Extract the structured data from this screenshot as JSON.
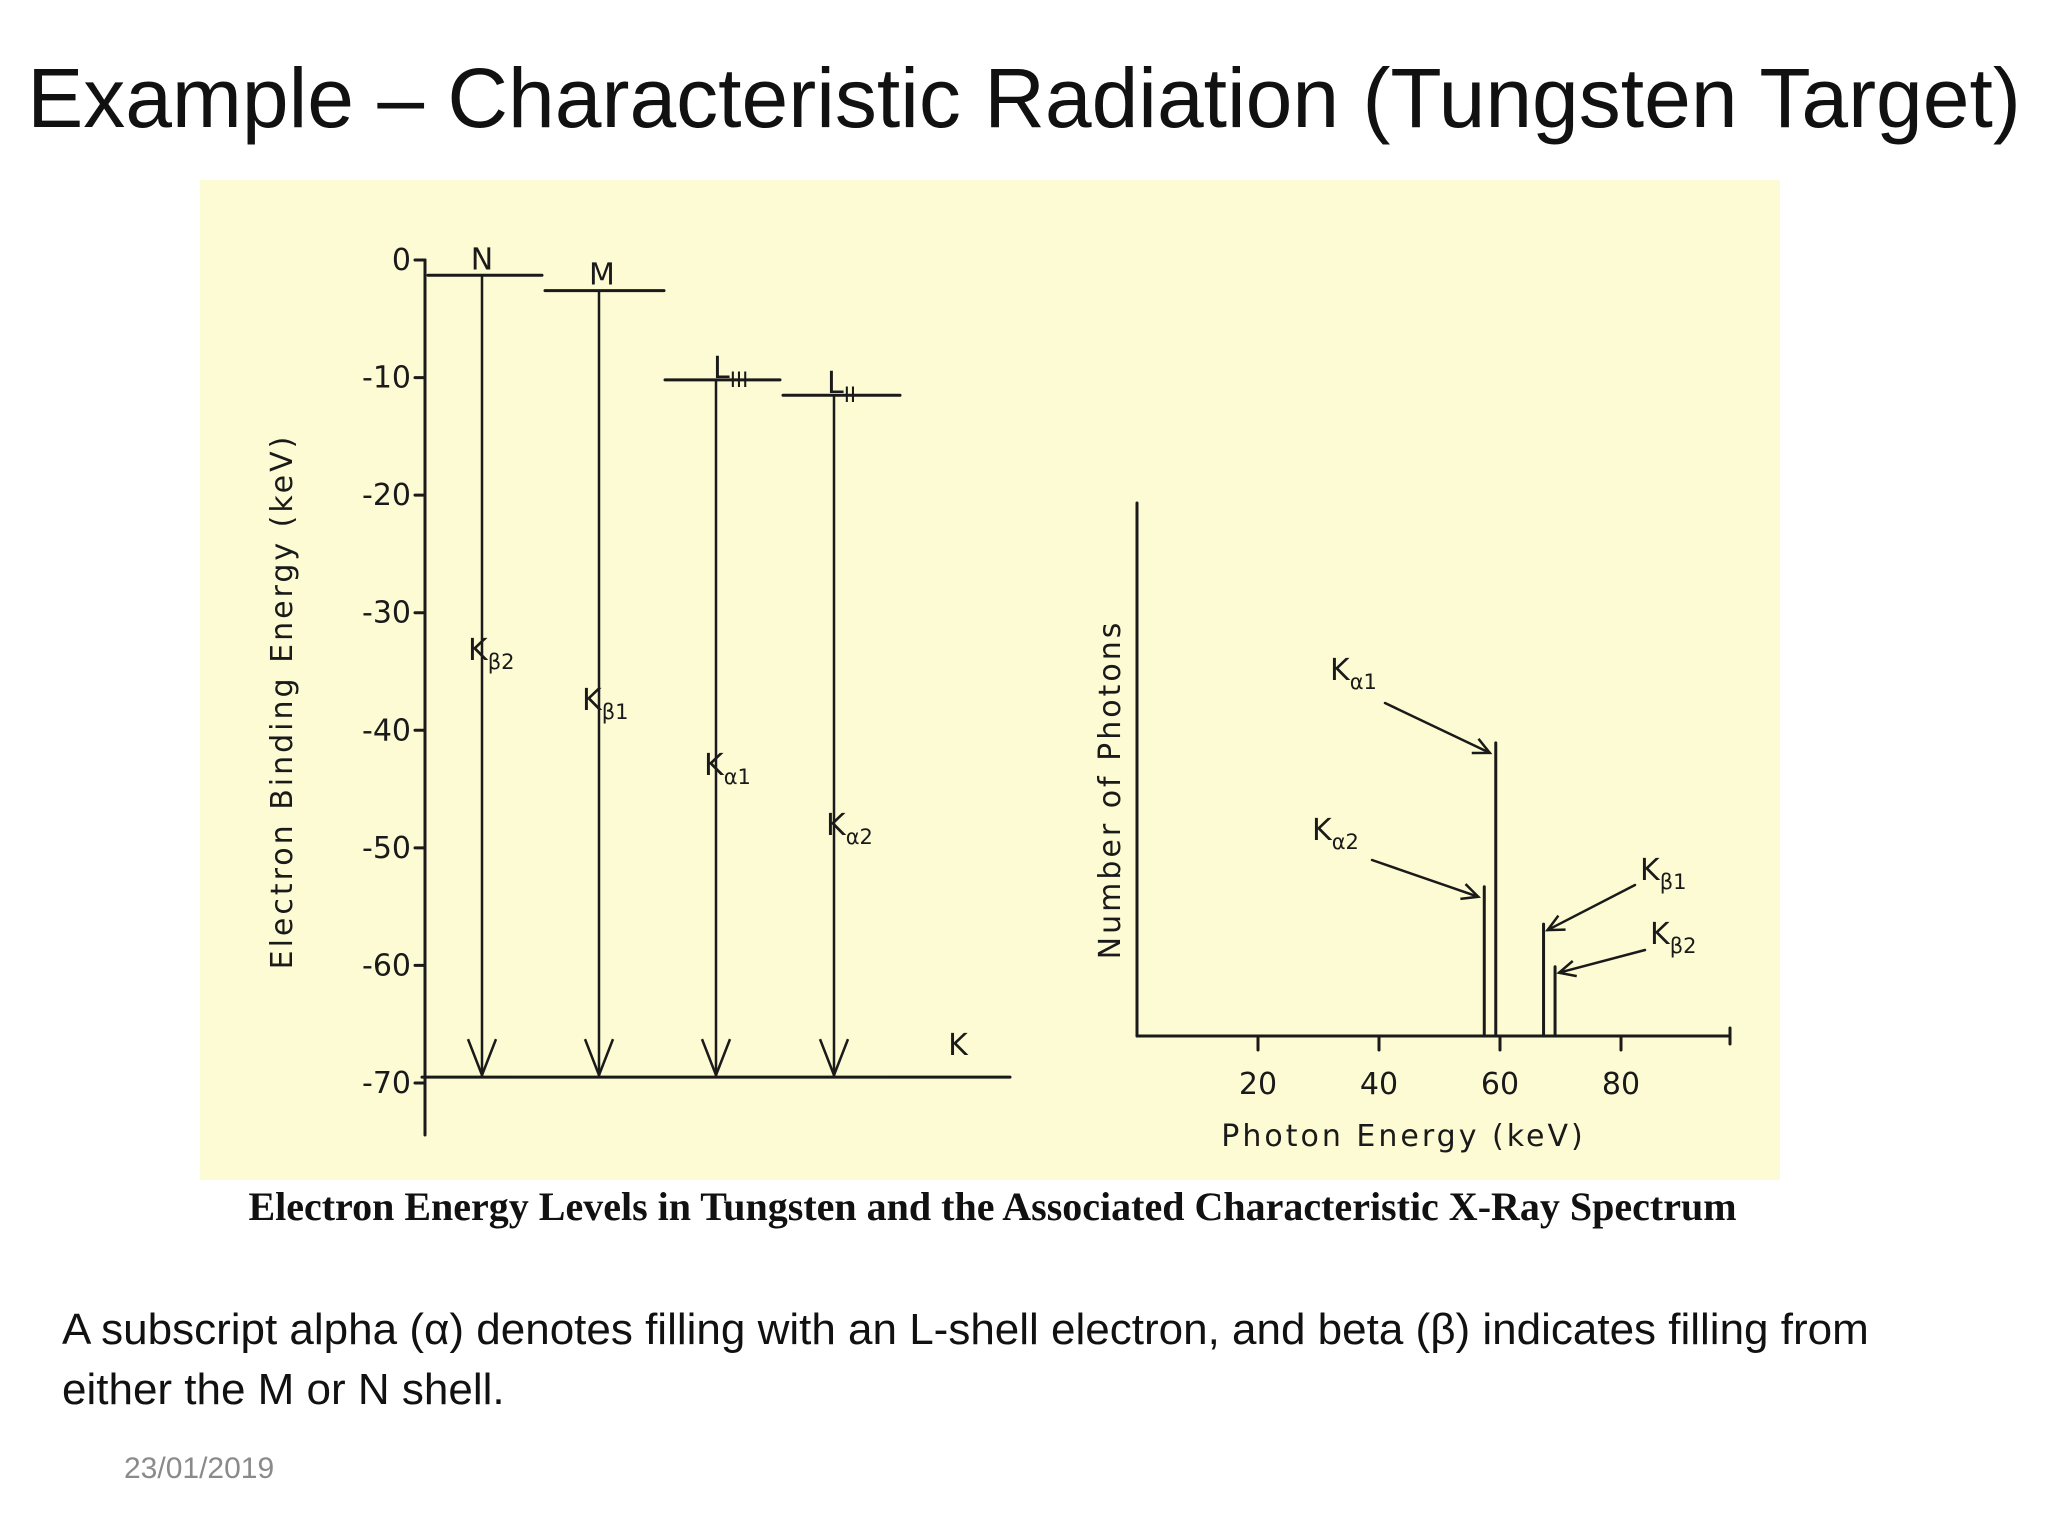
{
  "slide": {
    "title": "Example – Characteristic Radiation (Tungsten Target)",
    "caption": "Electron Energy Levels in Tungsten and the Associated Characteristic X-Ray Spectrum",
    "body": "A subscript alpha (α) denotes filling with an L-shell electron, and beta (β) indicates filling from either the M or N shell.",
    "date": "23/01/2019"
  },
  "colors": {
    "panel": "#fcfbd3",
    "ink": "#1a1a1a"
  },
  "chart_data": [
    {
      "type": "diagram",
      "ylabel": "Electron Binding Energy (keV)",
      "ylim": [
        -70,
        0
      ],
      "y_ticks": [
        0,
        -10,
        -20,
        -30,
        -40,
        -50,
        -60,
        -70
      ],
      "y_tick_labels": [
        "0",
        "-10",
        "-20",
        "-30",
        "-40",
        "-50",
        "-60",
        "-70"
      ],
      "shells": [
        {
          "label": "N",
          "energy": -1.3
        },
        {
          "label": "M",
          "energy": -2.6
        },
        {
          "label": "LIII",
          "energy": -10.2
        },
        {
          "label": "LII",
          "energy": -11.5
        },
        {
          "label": "K",
          "energy": -69.5
        }
      ],
      "transitions": [
        {
          "label": "Kβ2",
          "base": "K",
          "sub": "β2",
          "from": "N",
          "to": "K"
        },
        {
          "label": "Kβ1",
          "base": "K",
          "sub": "β1",
          "from": "M",
          "to": "K"
        },
        {
          "label": "Kα1",
          "base": "K",
          "sub": "α1",
          "from": "LIII",
          "to": "K"
        },
        {
          "label": "Kα2",
          "base": "K",
          "sub": "α2",
          "from": "LII",
          "to": "K"
        }
      ]
    },
    {
      "type": "bar",
      "xlabel": "Photon Energy (keV)",
      "ylabel": "Number of Photons",
      "xlim": [
        0,
        100
      ],
      "x_ticks": [
        20,
        40,
        60,
        80
      ],
      "x_tick_labels": [
        "20",
        "40",
        "60",
        "80"
      ],
      "ylim": [
        0,
        100
      ],
      "lines": [
        {
          "label": "Kα2",
          "base": "K",
          "sub": "α2",
          "x": 57.4,
          "y": 28
        },
        {
          "label": "Kα1",
          "base": "K",
          "sub": "α1",
          "x": 59.3,
          "y": 55
        },
        {
          "label": "Kβ1",
          "base": "K",
          "sub": "β1",
          "x": 67.2,
          "y": 21
        },
        {
          "label": "Kβ2",
          "base": "K",
          "sub": "β2",
          "x": 69.1,
          "y": 13
        }
      ]
    }
  ]
}
